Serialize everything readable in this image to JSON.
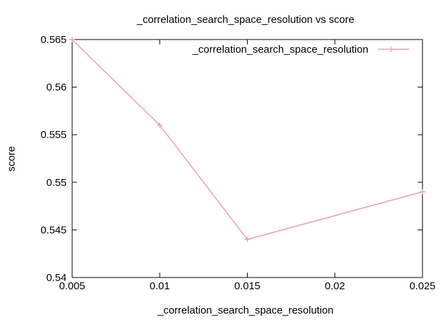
{
  "chart_data": {
    "type": "line",
    "title": "_correlation_search_space_resolution vs score",
    "xlabel": "_correlation_search_space_resolution",
    "ylabel": "score",
    "xlim": [
      0.005,
      0.025
    ],
    "ylim": [
      0.54,
      0.565
    ],
    "x_ticks": [
      "0.005",
      "0.01",
      "0.015",
      "0.02",
      "0.025"
    ],
    "y_ticks": [
      "0.54",
      "0.545",
      "0.55",
      "0.555",
      "0.56",
      "0.565"
    ],
    "grid": false,
    "legend_position": "top-right",
    "series": [
      {
        "name": "_correlation_search_space_resolution",
        "color": "#e8a0b4",
        "marker": "plus",
        "x": [
          0.005,
          0.01,
          0.015,
          0.025
        ],
        "y": [
          0.565,
          0.556,
          0.544,
          0.549
        ]
      }
    ]
  }
}
